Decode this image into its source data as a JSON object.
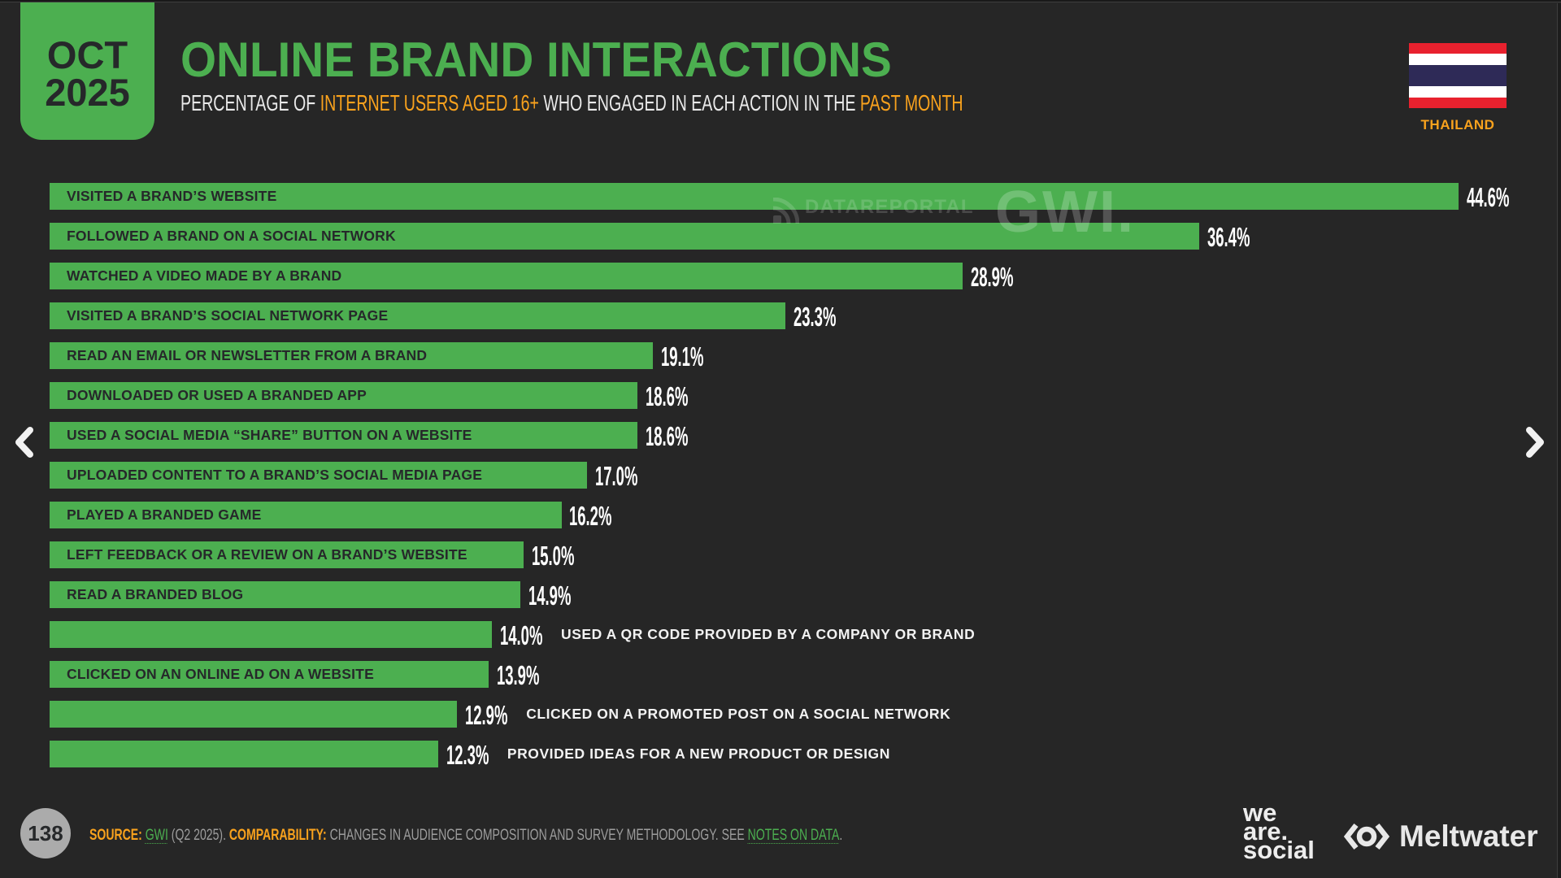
{
  "badge": {
    "month": "OCT",
    "year": "2025"
  },
  "header": {
    "title": "ONLINE BRAND INTERACTIONS",
    "subtitle_parts": [
      {
        "text": "PERCENTAGE OF ",
        "color": "white"
      },
      {
        "text": "INTERNET USERS AGED 16+",
        "color": "orange"
      },
      {
        "text": " WHO ENGAGED IN EACH ACTION IN THE ",
        "color": "white"
      },
      {
        "text": "PAST MONTH",
        "color": "orange"
      }
    ]
  },
  "flag": {
    "country": "THAILAND",
    "stripe_colors": [
      "#E8212E",
      "#FFFFFF",
      "#2E2A57",
      "#FFFFFF",
      "#E8212E"
    ],
    "stripe_heights": [
      13.4,
      13.3,
      26.6,
      13.3,
      13.4
    ]
  },
  "chart_data": {
    "type": "bar",
    "orientation": "horizontal",
    "title": "ONLINE BRAND INTERACTIONS",
    "subtitle": "PERCENTAGE OF INTERNET USERS AGED 16+ WHO ENGAGED IN EACH ACTION IN THE PAST MONTH",
    "value_suffix": "%",
    "xlim": [
      0,
      44.6
    ],
    "bar_color": "#4CAF50",
    "categories": [
      "VISITED A BRAND’S WEBSITE",
      "FOLLOWED A BRAND ON A SOCIAL NETWORK",
      "WATCHED A VIDEO MADE BY A BRAND",
      "VISITED A BRAND’S SOCIAL NETWORK PAGE",
      "READ AN EMAIL OR NEWSLETTER FROM A BRAND",
      "DOWNLOADED OR USED A BRANDED APP",
      "USED A SOCIAL MEDIA “SHARE” BUTTON ON A WEBSITE",
      "UPLOADED CONTENT TO A BRAND’S SOCIAL MEDIA PAGE",
      "PLAYED A BRANDED GAME",
      "LEFT FEEDBACK OR A REVIEW ON A BRAND’S WEBSITE",
      "READ A BRANDED BLOG",
      "USED A QR CODE PROVIDED BY A COMPANY OR BRAND",
      "CLICKED ON AN ONLINE AD ON A WEBSITE",
      "CLICKED ON A PROMOTED POST ON A SOCIAL NETWORK",
      "PROVIDED IDEAS FOR A NEW PRODUCT OR DESIGN"
    ],
    "values": [
      44.6,
      36.4,
      28.9,
      23.3,
      19.1,
      18.6,
      18.6,
      17.0,
      16.2,
      15.0,
      14.9,
      14.0,
      13.9,
      12.9,
      12.3
    ],
    "label_placement": [
      "inside",
      "inside",
      "inside",
      "inside",
      "inside",
      "inside",
      "inside",
      "inside",
      "inside",
      "inside",
      "inside",
      "outside",
      "inside",
      "outside",
      "outside"
    ]
  },
  "watermark": {
    "datareportal": "DATAREPORTAL",
    "gwi": "GWI."
  },
  "footer": {
    "page_number": "138",
    "source_parts": [
      {
        "text": "SOURCE:",
        "style": "orange"
      },
      {
        "text": " ",
        "style": "gray"
      },
      {
        "text": "GWI",
        "style": "greenlink"
      },
      {
        "text": " (Q2 2025). ",
        "style": "gray"
      },
      {
        "text": "COMPARABILITY:",
        "style": "orange"
      },
      {
        "text": " CHANGES IN AUDIENCE COMPOSITION AND SURVEY METHODOLOGY. SEE ",
        "style": "gray"
      },
      {
        "text": "NOTES ON DATA",
        "style": "greenlink"
      },
      {
        "text": ".",
        "style": "gray"
      }
    ]
  },
  "logos": {
    "we_are_social_lines": [
      "we",
      "are.",
      "social"
    ],
    "meltwater": "Meltwater"
  },
  "colors": {
    "background": "#262626",
    "green": "#4CAF50",
    "orange": "#F9A21D",
    "dark_text": "#26282A",
    "gray_text": "#9D9D9D"
  }
}
